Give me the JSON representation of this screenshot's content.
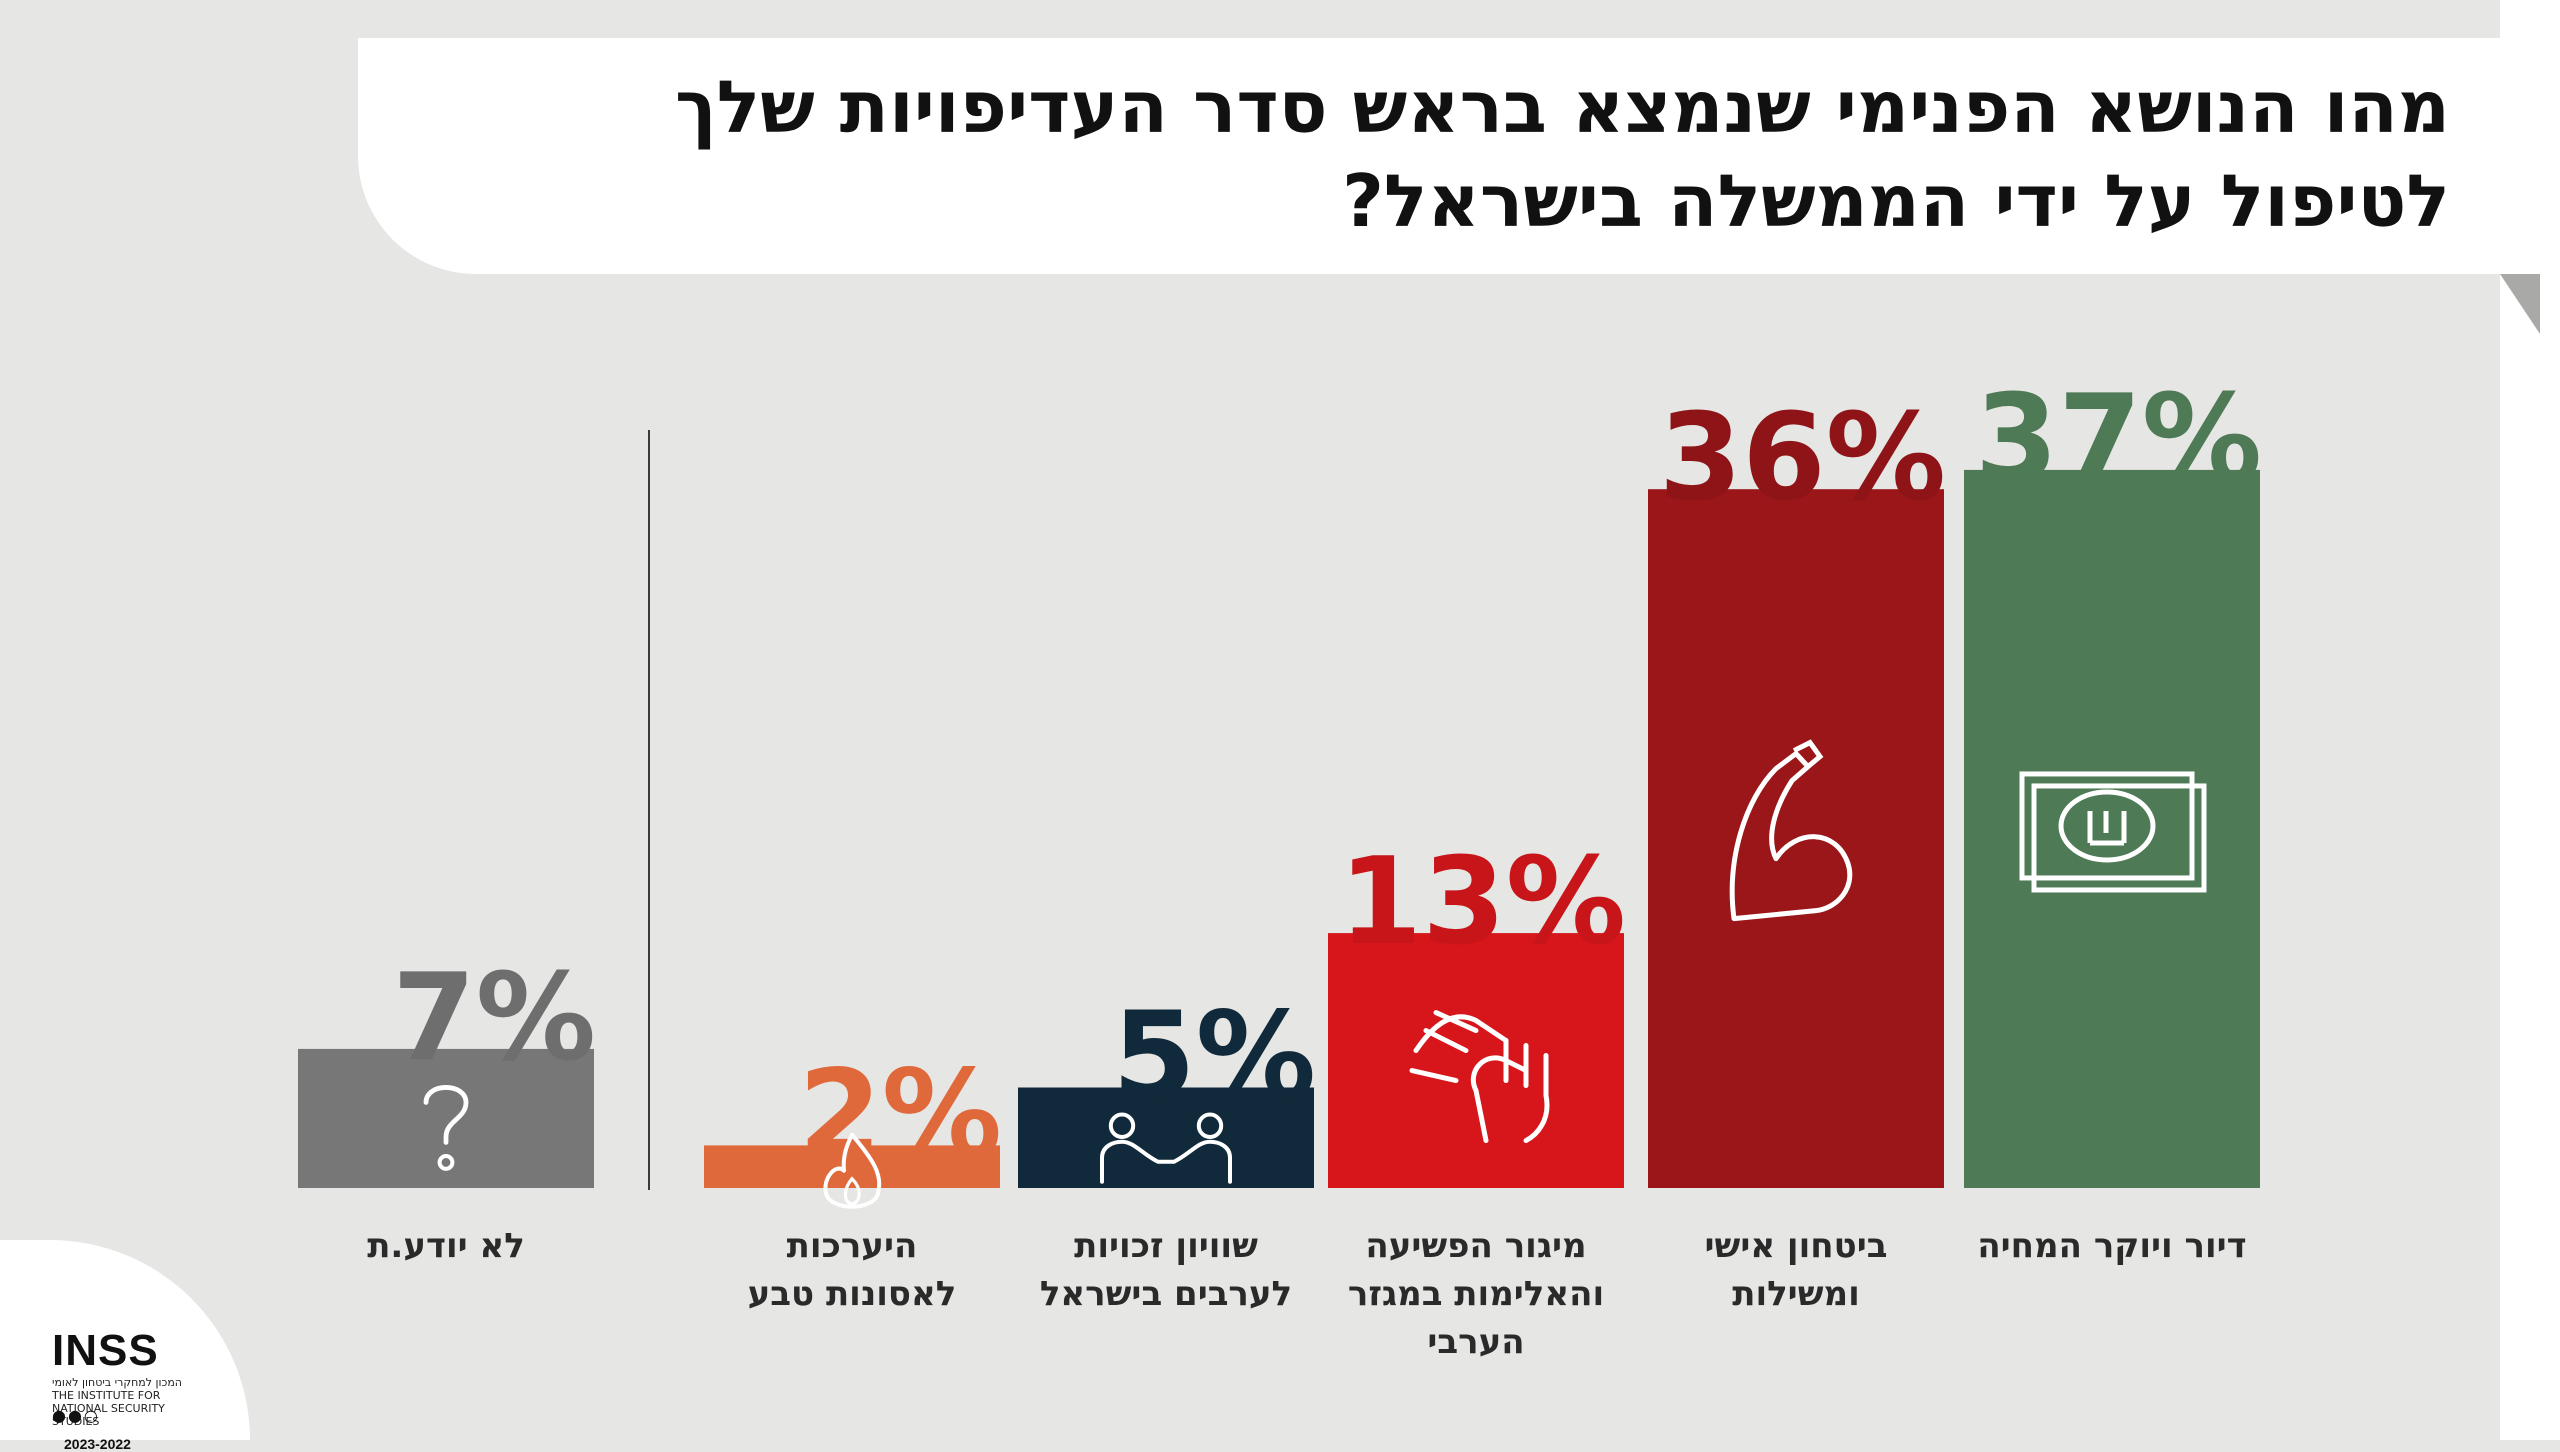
{
  "title_lines": [
    "מהו הנושא הפנימי שנמצא בראש סדר העדיפויות שלך",
    "לטיפול על ידי הממשלה בישראל?"
  ],
  "chart_data": {
    "type": "bar",
    "title": "מהו הנושא הפנימי שנמצא בראש סדר העדיפויות שלך לטיפול על ידי הממשלה בישראל?",
    "xlabel": "",
    "ylabel": "",
    "ylim": [
      0,
      40
    ],
    "grid": false,
    "legend": "none",
    "categories": [
      {
        "label_lines": [
          "דיור ויוקר המחיה"
        ],
        "value": 37,
        "value_label": "37%",
        "color": "#4e7a55",
        "label_color": "#4e7a55",
        "icon": "money-bill-icon"
      },
      {
        "label_lines": [
          "ביטחון אישי",
          "ומשילות"
        ],
        "value": 36,
        "value_label": "36%",
        "color": "#9a1619",
        "label_color": "#8e1417",
        "icon": "flexed-arm-icon"
      },
      {
        "label_lines": [
          "מיגור הפשיעה",
          "והאלימות במגזר",
          "הערבי"
        ],
        "value": 13,
        "value_label": "13%",
        "color": "#d7161b",
        "label_color": "#c8151a",
        "icon": "hands-icon"
      },
      {
        "label_lines": [
          "שוויון זכויות",
          "לערבים בישראל"
        ],
        "value": 5,
        "value_label": "5%",
        "color": "#102a3b",
        "label_color": "#102a3b",
        "icon": "handshake-people-icon"
      },
      {
        "label_lines": [
          "היערכות",
          "לאסונות טבע"
        ],
        "value": 2,
        "value_label": "2%",
        "color": "#e0693b",
        "label_color": "#e0693b",
        "icon": "flame-icon"
      },
      {
        "label_lines": [
          "לא יודע.ת"
        ],
        "value": 7,
        "value_label": "7%",
        "color": "#777777",
        "label_color": "#6e6e6e",
        "icon": "question-icon"
      }
    ]
  },
  "logo": {
    "mark": "INSS",
    "subtitle": "המכון למחקרי ביטחון לאומי THE INSTITUTE FOR NATIONAL SECURITY STUDIES",
    "years": "2023-2022"
  }
}
